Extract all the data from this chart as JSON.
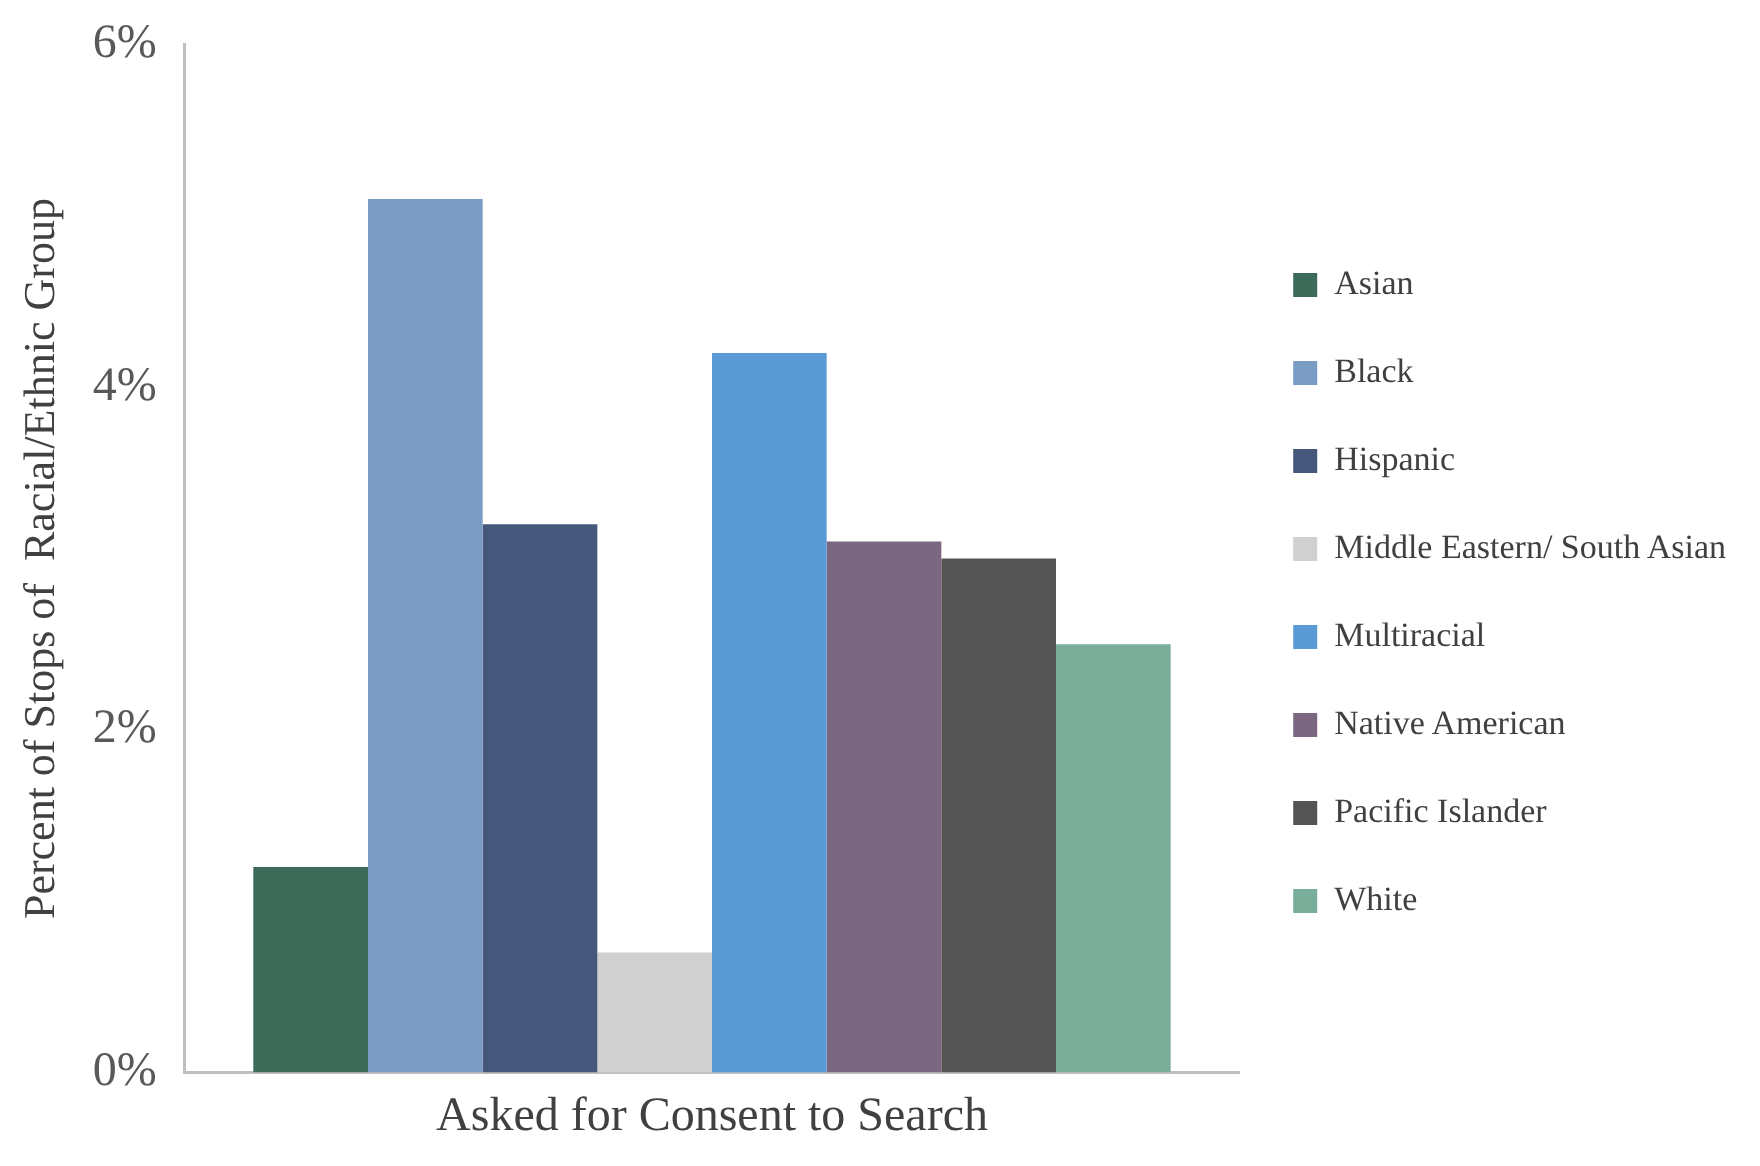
{
  "chart_data": {
    "type": "bar",
    "ylabel": "Percent of Stops of  Racial/Ethnic Group",
    "categories": [
      "Asked for Consent to Search"
    ],
    "series": [
      {
        "name": "Asian",
        "color": "#3d6b5a",
        "values": [
          1.2
        ]
      },
      {
        "name": "Black",
        "color": "#7a9cc4",
        "values": [
          5.1
        ]
      },
      {
        "name": "Hispanic",
        "color": "#45587c",
        "values": [
          3.2
        ]
      },
      {
        "name": "Middle Eastern/ South Asian",
        "color": "#d0d0d0",
        "values": [
          0.7
        ]
      },
      {
        "name": "Multiracial",
        "color": "#5b9bd5",
        "values": [
          4.2
        ]
      },
      {
        "name": "Native American",
        "color": "#7b6880",
        "values": [
          3.1
        ]
      },
      {
        "name": "Pacific Islander",
        "color": "#545454",
        "values": [
          3.0
        ]
      },
      {
        "name": "White",
        "color": "#7bae9a",
        "values": [
          2.5
        ]
      }
    ],
    "ylim": [
      0,
      6
    ],
    "yticks": [
      {
        "value": 0,
        "label": "0%"
      },
      {
        "value": 2,
        "label": "2%"
      },
      {
        "value": 4,
        "label": "4%"
      },
      {
        "value": 6,
        "label": "6%"
      }
    ],
    "grid": false,
    "legend": "right"
  }
}
